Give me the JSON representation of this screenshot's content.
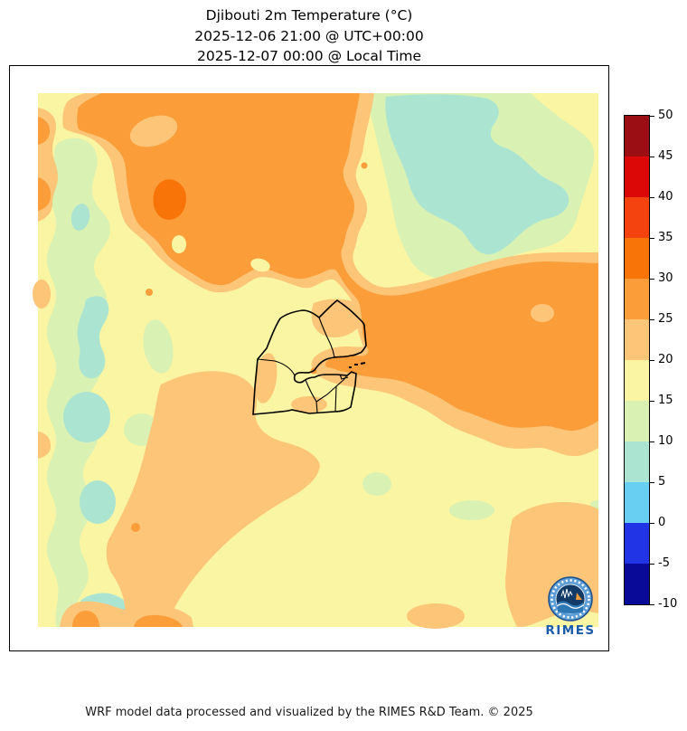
{
  "title": {
    "line1": "Djibouti 2m Temperature (°C)",
    "line2": "2025-12-06 21:00 @ UTC+00:00",
    "line3": "2025-12-07 00:00 @ Local Time"
  },
  "footer": "WRF model data processed and visualized by the RIMES R&D Team. © 2025",
  "logo": {
    "text": "RIMES"
  },
  "palette": {
    "c45_50": "#9b0f14",
    "c40_45": "#dc0807",
    "c35_40": "#f4430f",
    "c30_35": "#f87408",
    "c25_30": "#fb9e3a",
    "c20_25": "#fcc577",
    "c15_20": "#faf5a3",
    "c10_15": "#d9f1b2",
    "c5_10": "#abe5d2",
    "c0_5": "#68cff2",
    "cm5_0": "#2134e6",
    "cm10_m5": "#0a0a99"
  },
  "colorbar": {
    "unit": "°C",
    "ticks": [
      "50",
      "45",
      "40",
      "35",
      "30",
      "25",
      "20",
      "15",
      "10",
      "5",
      "0",
      "-5",
      "-10"
    ],
    "bins": [
      {
        "range": "45-50",
        "key": "c45_50"
      },
      {
        "range": "40-45",
        "key": "c40_45"
      },
      {
        "range": "35-40",
        "key": "c35_40"
      },
      {
        "range": "30-35",
        "key": "c30_35"
      },
      {
        "range": "25-30",
        "key": "c25_30"
      },
      {
        "range": "20-25",
        "key": "c20_25"
      },
      {
        "range": "15-20",
        "key": "c15_20"
      },
      {
        "range": "10-15",
        "key": "c10_15"
      },
      {
        "range": "5-10",
        "key": "c5_10"
      },
      {
        "range": "0-5",
        "key": "c0_5"
      },
      {
        "range": "-5-0",
        "key": "cm5_0"
      },
      {
        "range": "-10--5",
        "key": "cm10_m5"
      }
    ]
  },
  "chart_data": {
    "type": "filled_contour_map",
    "variable": "2m Temperature",
    "unit": "°C",
    "region": "Djibouti and surroundings (WRF model domain)",
    "valid_time_utc": "2025-12-06 21:00",
    "valid_time_local": "2025-12-07 00:00",
    "levels": [
      -10,
      -5,
      0,
      5,
      10,
      15,
      20,
      25,
      30,
      35,
      40,
      45,
      50
    ],
    "level_colors_low_to_high": [
      "#0a0a99",
      "#2134e6",
      "#68cff2",
      "#abe5d2",
      "#d9f1b2",
      "#faf5a3",
      "#fcc577",
      "#fb9e3a",
      "#f87408",
      "#f4430f",
      "#dc0807",
      "#9b0f14"
    ],
    "observed_range_c": [
      0,
      35
    ],
    "legend_position": "right vertical colorbar",
    "features": [
      "Large 25-30°C (orange) warm region across the top-centre of the domain with a small 30-35°C core",
      "Large 25-30°C (orange) warm region on the centre-right extending into the Gulf of Tadjoura",
      "Cool 5-10°C patch (pale cyan) in the upper right surrounded by a 10-15°C halo",
      "Wavy 10-15°C band with 5-10°C pockets along the left edge; one small 0-5°C spot near the bottom-left",
      "Background mostly 15-20°C (pale yellow) with 20-25°C (tan) transition bands",
      "Djibouti national and regional boundaries drawn in black at the map centre"
    ]
  }
}
